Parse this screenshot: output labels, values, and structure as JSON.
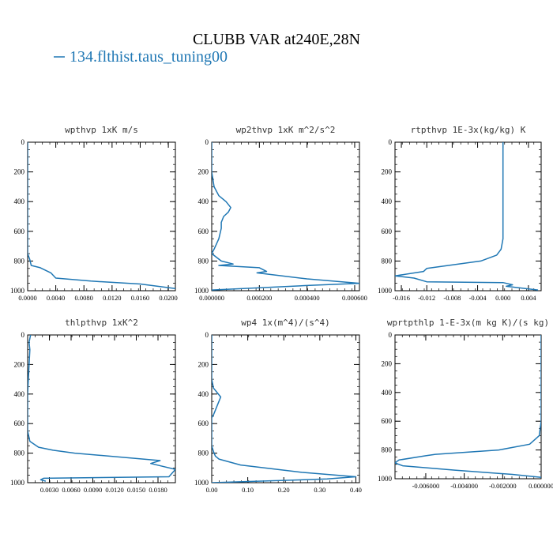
{
  "figure": {
    "title": "CLUBB VAR at240E,28N",
    "legend": [
      {
        "name": "134.flthist.taus_tuning00",
        "color": "#1f77b4"
      }
    ],
    "line_color": "#1f77b4"
  },
  "chart_data": [
    {
      "type": "line",
      "title": "wpthvp   1xK m/s",
      "xlim": [
        0.0,
        0.021
      ],
      "ylim": [
        0,
        1000
      ],
      "y_reversed": true,
      "xticks": [
        "0.0000",
        "0.0040",
        "0.0080",
        "0.0120",
        "0.0160",
        "0.0200"
      ],
      "xtick_values": [
        0.0,
        0.004,
        0.008,
        0.012,
        0.016,
        0.02
      ],
      "yticks": [
        "0",
        "200",
        "400",
        "600",
        "800",
        "1000"
      ],
      "ytick_values": [
        0,
        200,
        400,
        600,
        800,
        1000
      ],
      "series": [
        {
          "x": [
            0.0,
            0.0,
            0.0,
            0.0,
            0.0,
            0.0,
            0.0,
            0.0,
            0.0,
            0.0003,
            0.0005,
            0.0018,
            0.0022,
            0.0033,
            0.004,
            0.009,
            0.016,
            0.021
          ],
          "y": [
            0,
            100,
            200,
            300,
            400,
            500,
            600,
            700,
            750,
            790,
            830,
            845,
            855,
            880,
            915,
            935,
            955,
            985
          ]
        }
      ]
    },
    {
      "type": "line",
      "title": "wp2thvp   1xK m^2/s^2",
      "xlim": [
        0.0,
        0.00062
      ],
      "ylim": [
        0,
        1000
      ],
      "y_reversed": true,
      "xticks": [
        "0.000000",
        "0.000200",
        "0.000400",
        "0.000600"
      ],
      "xtick_values": [
        0.0,
        0.0002,
        0.0004,
        0.0006
      ],
      "yticks": [
        "0",
        "200",
        "400",
        "600",
        "800",
        "1000"
      ],
      "ytick_values": [
        0,
        200,
        400,
        600,
        800,
        1000
      ],
      "series": [
        {
          "x": [
            0.0,
            0.0,
            0.0,
            1e-05,
            3e-05,
            6e-05,
            8e-05,
            7e-05,
            5e-05,
            4e-05,
            4e-05,
            3e-05,
            1e-05,
            0.0,
            4e-05,
            9e-05,
            3e-05,
            0.0002,
            0.00023,
            0.00019,
            0.0004,
            0.00062,
            0.0004,
            0.0
          ],
          "y": [
            0,
            100,
            200,
            300,
            360,
            400,
            440,
            470,
            500,
            540,
            580,
            650,
            720,
            750,
            800,
            820,
            830,
            845,
            870,
            880,
            920,
            950,
            965,
            995
          ]
        }
      ]
    },
    {
      "type": "line",
      "title": "rtpthvp   1E-3x(kg/kg) K",
      "xlim": [
        -0.017,
        0.006
      ],
      "ylim": [
        0,
        1000
      ],
      "y_reversed": true,
      "xticks": [
        "-0.016",
        "-0.012",
        "-0.008",
        "-0.004",
        "0.000",
        "0.004"
      ],
      "xtick_values": [
        -0.016,
        -0.012,
        -0.008,
        -0.004,
        0.0,
        0.004
      ],
      "yticks": [
        "0",
        "200",
        "400",
        "600",
        "800",
        "1000"
      ],
      "ytick_values": [
        0,
        200,
        400,
        600,
        800,
        1000
      ],
      "series": [
        {
          "x": [
            0.0,
            0.0,
            0.0,
            0.0,
            0.0,
            0.0,
            0.0,
            -0.0003,
            -0.001,
            -0.0035,
            -0.012,
            -0.0125,
            -0.017,
            -0.014,
            -0.012,
            0.0,
            0.0015,
            0.0005,
            0.0055
          ],
          "y": [
            0,
            100,
            200,
            300,
            400,
            500,
            650,
            720,
            760,
            800,
            850,
            870,
            900,
            915,
            940,
            945,
            960,
            970,
            995
          ]
        }
      ]
    },
    {
      "type": "line",
      "title": "thlpthvp   1xK^2",
      "xlim": [
        0.0,
        0.0204
      ],
      "ylim": [
        0,
        1000
      ],
      "y_reversed": true,
      "xticks": [
        "0.0030",
        "0.0060",
        "0.0090",
        "0.0120",
        "0.0150",
        "0.0180"
      ],
      "xtick_values": [
        0.003,
        0.006,
        0.009,
        0.012,
        0.015,
        0.018
      ],
      "yticks": [
        "0",
        "200",
        "400",
        "600",
        "800",
        "1000"
      ],
      "ytick_values": [
        0,
        200,
        400,
        600,
        800,
        1000
      ],
      "series": [
        {
          "x": [
            0.0004,
            0.0002,
            0.0003,
            0.0002,
            0.0001,
            0.0,
            0.0,
            0.0,
            0.0003,
            0.0015,
            0.0035,
            0.0065,
            0.0183,
            0.017,
            0.0204,
            0.0195,
            0.0022,
            0.0018,
            0.0025
          ],
          "y": [
            0,
            50,
            100,
            200,
            300,
            400,
            500,
            650,
            720,
            760,
            780,
            800,
            850,
            870,
            910,
            960,
            970,
            980,
            990
          ]
        }
      ]
    },
    {
      "type": "line",
      "title": "wp4   1x(m^4)/(s^4)",
      "xlim": [
        0.0,
        0.41
      ],
      "ylim": [
        0,
        1000
      ],
      "y_reversed": true,
      "xticks": [
        "0.00",
        "0.10",
        "0.20",
        "0.30",
        "0.40"
      ],
      "xtick_values": [
        0.0,
        0.1,
        0.2,
        0.3,
        0.4
      ],
      "yticks": [
        "0",
        "200",
        "400",
        "600",
        "800",
        "1000"
      ],
      "ytick_values": [
        0,
        200,
        400,
        600,
        800,
        1000
      ],
      "series": [
        {
          "x": [
            0.0,
            0.0,
            0.0,
            0.0,
            0.005,
            0.015,
            0.025,
            0.015,
            0.005,
            0.0,
            0.0,
            0.0,
            0.005,
            0.01,
            0.02,
            0.08,
            0.25,
            0.4,
            0.32,
            0.0
          ],
          "y": [
            0,
            100,
            200,
            300,
            360,
            390,
            420,
            480,
            540,
            560,
            650,
            750,
            790,
            820,
            840,
            880,
            930,
            960,
            975,
            1000
          ]
        }
      ]
    },
    {
      "type": "line",
      "title": "wprtpthlp   1-E-3x(m kg K)/(s kg)",
      "xlim": [
        -0.0076,
        0.0
      ],
      "ylim": [
        0,
        1000
      ],
      "y_reversed": true,
      "xticks": [
        "-0.006000",
        "-0.004000",
        "-0.002000",
        "0.000000"
      ],
      "xtick_values": [
        -0.006,
        -0.004,
        -0.002,
        0.0
      ],
      "yticks": [
        "0",
        "200",
        "400",
        "600",
        "800",
        "1000"
      ],
      "ytick_values": [
        0,
        200,
        400,
        600,
        800,
        1000
      ],
      "series": [
        {
          "x": [
            0.0,
            0.0,
            0.0,
            0.0,
            0.0,
            0.0,
            -0.0001,
            -0.0006,
            -0.0022,
            -0.0055,
            -0.006,
            -0.0074,
            -0.0076,
            -0.0072,
            -0.0045,
            -0.0015,
            0.0
          ],
          "y": [
            0,
            200,
            300,
            400,
            500,
            600,
            700,
            760,
            800,
            830,
            840,
            870,
            890,
            910,
            940,
            970,
            990
          ]
        }
      ]
    }
  ]
}
